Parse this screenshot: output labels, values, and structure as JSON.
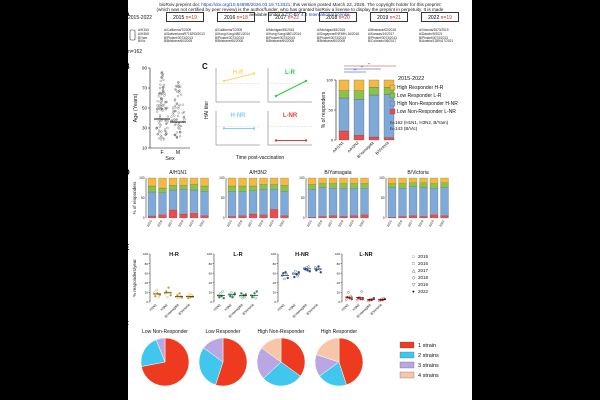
{
  "header": {
    "line1_pre": "bioRxiv preprint doi: ",
    "doi": "https://doi.org/10.64898/2026.03.19.713321",
    "line1_post": "; this version posted March 22, 2026. The copyright holder for this preprint",
    "line2": "(which was not certified by peer review) is the author/funder, who has granted bioRxiv a license to display the preprint in perpetuity. It is made",
    "line3_pre": "available under a ",
    "license": "CC-BY 4.0 International license",
    "line3_post": "."
  },
  "panel_labels": {
    "a": "A",
    "b": "B",
    "c": "C",
    "d": "D",
    "e": "E",
    "f": "F"
  },
  "panelA": {
    "range": "2015-2022",
    "years": [
      {
        "year": "2015",
        "n": "n=19"
      },
      {
        "year": "2016",
        "n": "n=18"
      },
      {
        "year": "2017",
        "n": "n=22"
      },
      {
        "year": "2018",
        "n": "n=20"
      },
      {
        "year": "2019",
        "n": "n=21"
      },
      {
        "year": "2022",
        "n": "n=19"
      }
    ],
    "strain_labels": "A/H1N1\nA/H3N2\nB/Yam\nB/Vic",
    "strains": [
      "A/California/7/2009\nA/Switzerland/9715293/2013\nB/Phuket/3073/2013\nB/Brisbane/60/2008",
      "A/California/7/2009\nA/Hong Kong/4801/2014\nB/Phuket/3073/2013\nB/Brisbane/60/2008",
      "A/Michigan/45/2015\nA/Hong Kong/4801/2014\nB/Phuket/3073/2013\nB/Brisbane/60/2008",
      "A/Michigan/45/2015\nA/Singapore/INFIMH-16/2016\nB/Phuket/3073/2013\nB/Brisbane/60/2008",
      "A/Brisbane/02/2018\nA/Kansas/14/2017\nB/Phuket/3073/2013\nB/Colorado/06/2017",
      "A/Victoria/2570/2019\nA/Darwin/9/2021\nB/Phuket/3073/2013\nB/Austria/1359417/2021"
    ],
    "n_total": "n=162"
  },
  "panelB": {
    "ylabel": "Age (Years)",
    "xlabel": "Sex",
    "categories": [
      "F",
      "M"
    ],
    "yticks": [
      "10",
      "30",
      "50",
      "70",
      "90"
    ],
    "ylim": [
      10,
      90
    ],
    "medians": [
      39,
      36
    ]
  },
  "panelC": {
    "ylabel": "HAI titer",
    "xlabel": "Time post-vaccination",
    "groups": [
      {
        "name": "H-R",
        "color": "#f5d76e"
      },
      {
        "name": "L-R",
        "color": "#2ecc40"
      },
      {
        "name": "H-NR",
        "color": "#7fd3f0"
      },
      {
        "name": "L-NR",
        "color": "#e63b3b"
      }
    ],
    "bar_title": "2015-2022",
    "bar_ylabel": "% of responders",
    "categories": [
      "A/H1N1",
      "A/H3N2",
      "B/Yamagata",
      "B/Victoria"
    ],
    "legend": [
      "High Responder H-R",
      "Low Responder L-R",
      "High Non-Responder H-NR",
      "Low Non-Responder L-NR"
    ],
    "notes": [
      "n=162 (H1N1, H3N2, B/Yam)",
      "n=143 (B/Vic)"
    ],
    "sig_marks": [
      "**",
      "**",
      "**"
    ]
  },
  "panelD": {
    "ylabel": "% of responders",
    "titles": [
      "A/H1N1",
      "A/H3N2",
      "B/Yamagata",
      "B/Victoria"
    ],
    "years": [
      "2015",
      "2016",
      "2017",
      "2018",
      "2019",
      "2022"
    ]
  },
  "panelE": {
    "ylabel": "% responders/year",
    "titles": [
      "H-R",
      "L-R",
      "H-NR",
      "L-NR"
    ],
    "categories": [
      "H1N1",
      "H3N2",
      "B/Yamagata",
      "B/Victoria"
    ],
    "legend_years": [
      "2015",
      "2016",
      "2017",
      "2018",
      "2019",
      "2022"
    ],
    "yticks": [
      "0",
      "20",
      "40",
      "60",
      "80",
      "100"
    ]
  },
  "panelF": {
    "titles": [
      "Low Non-Responder",
      "Low Responder",
      "High Non-Responder",
      "High Responder"
    ],
    "legend": [
      "1 strain",
      "2 strains",
      "3 strains",
      "4 strains"
    ],
    "colors": [
      "#ee3a1f",
      "#41c7ee",
      "#b9a6e3",
      "#f7c5a8"
    ]
  },
  "chart_data": [
    {
      "type": "line",
      "title": "HAI titer groups",
      "xlabel": "Time post-vaccination",
      "ylabel": "HAI titer",
      "series": [
        {
          "name": "H-R",
          "x": [
            0,
            1
          ],
          "values": [
            0.7,
            0.95
          ]
        },
        {
          "name": "L-R",
          "x": [
            0,
            1
          ],
          "values": [
            0.2,
            0.7
          ]
        },
        {
          "name": "H-NR",
          "x": [
            0,
            1
          ],
          "values": [
            0.55,
            0.55
          ]
        },
        {
          "name": "L-NR",
          "x": [
            0,
            1
          ],
          "values": [
            0.15,
            0.15
          ]
        }
      ]
    },
    {
      "type": "bar",
      "title": "2015-2022",
      "ylabel": "% of responders",
      "categories": [
        "A/H1N1",
        "A/H3N2",
        "B/Yamagata",
        "B/Victoria"
      ],
      "ylim": [
        0,
        100
      ],
      "series": [
        {
          "name": "Low Non-Responder L-NR",
          "values": [
            15,
            8,
            5,
            4
          ]
        },
        {
          "name": "High Non-Responder H-NR",
          "values": [
            55,
            60,
            70,
            72
          ]
        },
        {
          "name": "Low Responder L-R",
          "values": [
            12,
            14,
            13,
            12
          ]
        },
        {
          "name": "High Responder H-R",
          "values": [
            18,
            18,
            12,
            12
          ]
        }
      ]
    },
    {
      "type": "bar",
      "title": "Per-strain yearly composition",
      "strains": [
        "A/H1N1",
        "A/H3N2",
        "B/Yamagata",
        "B/Victoria"
      ],
      "categories": [
        "2015",
        "2016",
        "2017",
        "2018",
        "2019",
        "2022"
      ],
      "ylim": [
        0,
        100
      ],
      "data": [
        [
          [
            5,
            60,
            15,
            20
          ],
          [
            8,
            55,
            12,
            25
          ],
          [
            20,
            50,
            12,
            18
          ],
          [
            10,
            62,
            10,
            18
          ],
          [
            12,
            58,
            14,
            16
          ],
          [
            6,
            60,
            14,
            20
          ]
        ],
        [
          [
            4,
            62,
            14,
            20
          ],
          [
            6,
            60,
            14,
            20
          ],
          [
            10,
            58,
            12,
            20
          ],
          [
            8,
            64,
            12,
            16
          ],
          [
            22,
            50,
            12,
            16
          ],
          [
            6,
            60,
            16,
            18
          ]
        ],
        [
          [
            2,
            70,
            12,
            16
          ],
          [
            4,
            72,
            10,
            14
          ],
          [
            6,
            68,
            12,
            14
          ],
          [
            4,
            70,
            12,
            14
          ],
          [
            6,
            68,
            12,
            14
          ],
          [
            8,
            66,
            12,
            14
          ]
        ],
        [
          [
            2,
            74,
            10,
            14
          ],
          [
            4,
            70,
            12,
            14
          ],
          [
            6,
            72,
            10,
            12
          ],
          [
            4,
            72,
            12,
            12
          ],
          [
            8,
            66,
            12,
            14
          ],
          [
            6,
            70,
            12,
            12
          ]
        ]
      ]
    },
    {
      "type": "scatter",
      "title": "% responders/year",
      "groups": [
        "H-R",
        "L-R",
        "H-NR",
        "L-NR"
      ],
      "categories": [
        "H1N1",
        "H3N2",
        "B/Yamagata",
        "B/Victoria"
      ],
      "ylim": [
        0,
        100
      ],
      "data": [
        [
          [
            20,
            12,
            25,
            18,
            10,
            15
          ],
          [
            18,
            22,
            10,
            30,
            20,
            14
          ],
          [
            10,
            14,
            8,
            18,
            12,
            9
          ],
          [
            12,
            8,
            16,
            10,
            14,
            11
          ]
        ],
        [
          [
            14,
            10,
            18,
            12,
            22,
            8
          ],
          [
            16,
            12,
            20,
            10,
            14,
            18
          ],
          [
            12,
            18,
            8,
            14,
            10,
            16
          ],
          [
            14,
            10,
            12,
            18,
            8,
            22
          ]
        ],
        [
          [
            55,
            60,
            48,
            62,
            58,
            50
          ],
          [
            60,
            52,
            64,
            58,
            54,
            62
          ],
          [
            70,
            68,
            72,
            66,
            74,
            64
          ],
          [
            72,
            66,
            70,
            74,
            68,
            62
          ]
        ],
        [
          [
            5,
            10,
            20,
            8,
            12,
            6
          ],
          [
            4,
            8,
            10,
            6,
            22,
            6
          ],
          [
            2,
            4,
            6,
            4,
            6,
            8
          ],
          [
            2,
            4,
            6,
            4,
            8,
            6
          ]
        ]
      ]
    },
    {
      "type": "pie",
      "title": "Number of strains",
      "labels": [
        "1 strain",
        "2 strains",
        "3 strains",
        "4 strains"
      ],
      "pies": [
        {
          "name": "Low Non-Responder",
          "values": [
            72,
            22,
            6,
            0
          ]
        },
        {
          "name": "Low Responder",
          "values": [
            55,
            30,
            15,
            0
          ]
        },
        {
          "name": "High Non-Responder",
          "values": [
            35,
            28,
            22,
            15
          ]
        },
        {
          "name": "High Responder",
          "values": [
            45,
            20,
            15,
            20
          ]
        }
      ]
    }
  ]
}
